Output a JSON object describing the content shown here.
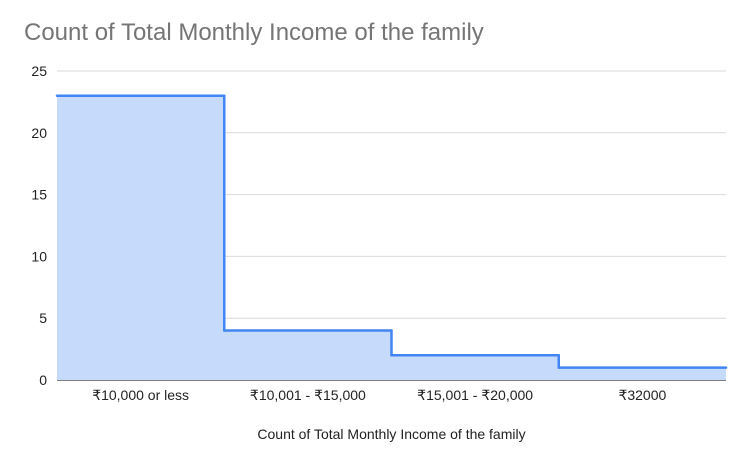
{
  "chart_data": {
    "type": "area",
    "step": true,
    "title": "Count of Total Monthly Income of the family",
    "xlabel": "Count of Total Monthly Income of the family",
    "ylabel": "",
    "categories": [
      "₹10,000 or less",
      "₹10,001 - ₹15,000",
      "₹15,001 - ₹20,000",
      "₹32000"
    ],
    "values": [
      23,
      4,
      2,
      1
    ],
    "ylim": [
      0,
      25
    ],
    "yticks": [
      "0",
      "5",
      "10",
      "15",
      "20",
      "25"
    ],
    "grid": true,
    "legend": "none",
    "colors": {
      "line": "#4285f4",
      "fill": "#c6dafc",
      "grid": "#d9d9d9",
      "baseline": "#333333"
    }
  }
}
